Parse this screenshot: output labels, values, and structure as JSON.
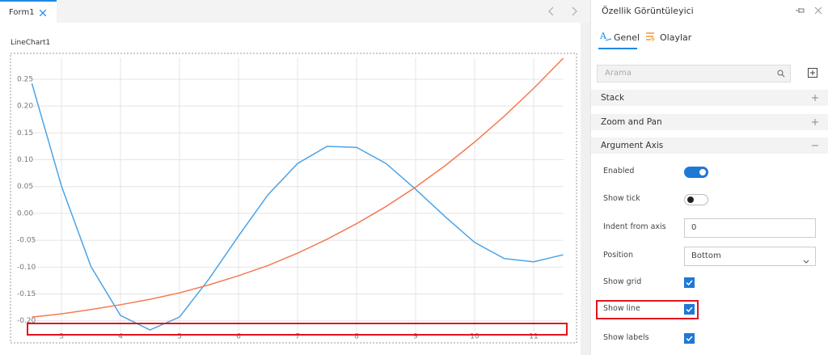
{
  "tabs": [
    "Form1"
  ],
  "designer": {
    "component_label": "LineChart1"
  },
  "chart_data": {
    "type": "line",
    "x": [
      2.5,
      3,
      3.5,
      4,
      4.5,
      5,
      5.5,
      6,
      6.5,
      7,
      7.5,
      8,
      8.5,
      9,
      9.5,
      10,
      10.5,
      11,
      11.5
    ],
    "series": [
      {
        "color": "#4ba3e6",
        "values": [
          0.242,
          0.051,
          -0.099,
          -0.19,
          -0.217,
          -0.193,
          -0.122,
          -0.042,
          0.035,
          0.093,
          0.125,
          0.123,
          0.093,
          0.045,
          -0.006,
          -0.054,
          -0.084,
          -0.09,
          -0.077
        ]
      },
      {
        "color": "#f47b52",
        "values": [
          -0.193,
          -0.187,
          -0.179,
          -0.17,
          -0.16,
          -0.148,
          -0.133,
          -0.116,
          -0.097,
          -0.074,
          -0.048,
          -0.019,
          0.013,
          0.049,
          0.089,
          0.133,
          0.181,
          0.233,
          0.289
        ]
      }
    ],
    "xlim": [
      2.5,
      11.5
    ],
    "ylim": [
      -0.22,
      0.29
    ],
    "xticks": [
      3,
      4,
      5,
      6,
      7,
      8,
      9,
      10,
      11
    ],
    "yticks": [
      0.25,
      {
        "value": 0.2,
        "label": "0.20"
      },
      0.15,
      {
        "value": 0.1,
        "label": "0.10"
      },
      0.05,
      {
        "value": 0,
        "label": "0.00"
      },
      -0.05,
      {
        "value": -0.1,
        "label": "-0.10"
      },
      -0.15,
      {
        "value": -0.2,
        "label": "-0.20"
      }
    ],
    "grid": true
  },
  "panel": {
    "title": "Özellik Görüntüleyici",
    "tabs": [
      "Genel",
      "Olaylar"
    ],
    "search_placeholder": "Arama",
    "sections": [
      {
        "label": "Stack",
        "expanded": false
      },
      {
        "label": "Zoom and Pan",
        "expanded": false
      },
      {
        "label": "Argument Axis",
        "expanded": true
      }
    ],
    "properties": [
      {
        "label": "Enabled",
        "kind": "toggle",
        "value": true
      },
      {
        "label": "Show tick",
        "kind": "toggle",
        "value": false
      },
      {
        "label": "Indent from axis",
        "kind": "input",
        "value": "0"
      },
      {
        "label": "Position",
        "kind": "select",
        "value": "Bottom"
      },
      {
        "label": "Show grid",
        "kind": "checkbox",
        "value": true
      },
      {
        "label": "Show line",
        "kind": "checkbox",
        "value": true
      },
      {
        "label": "Show labels",
        "kind": "checkbox",
        "value": true
      }
    ]
  }
}
